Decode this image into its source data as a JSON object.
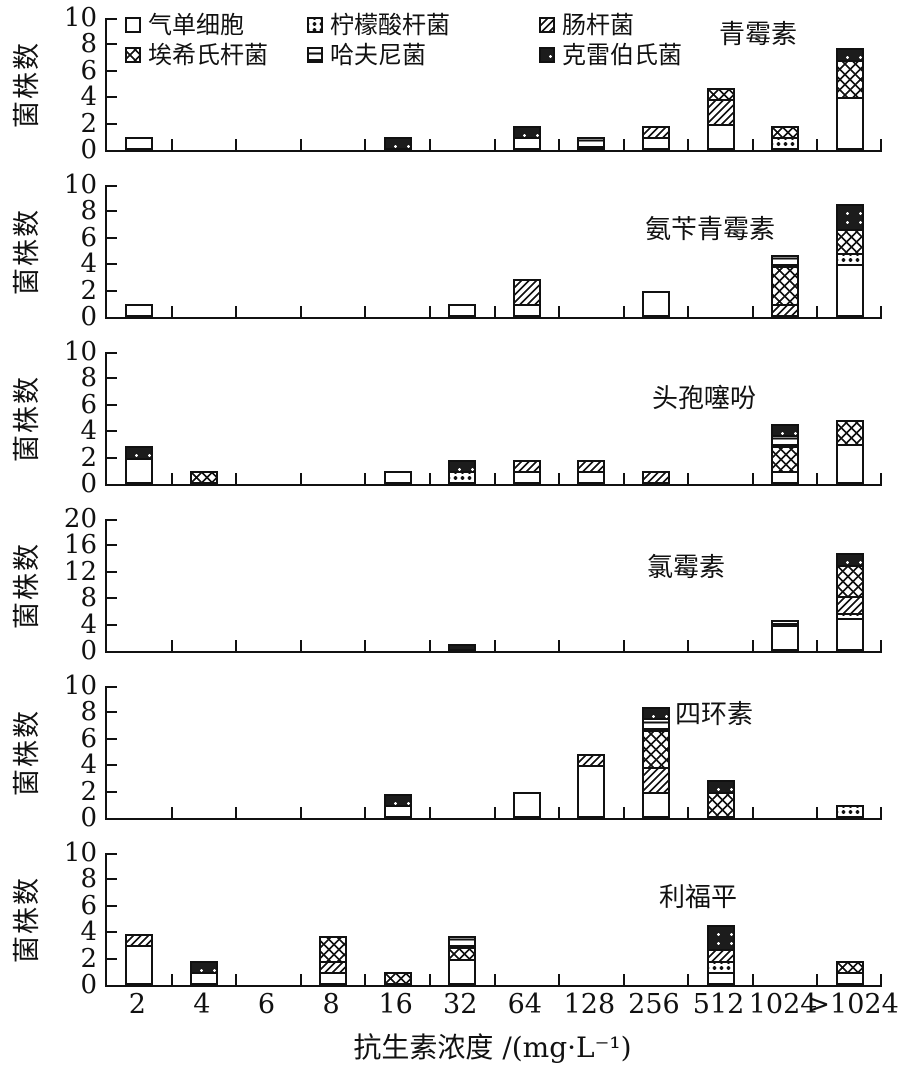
{
  "chart_data": {
    "type": "bar",
    "stacked": true,
    "ylabel": "菌株数",
    "xlabel": "抗生素浓度 /(mg·L⁻¹)",
    "categories": [
      "2",
      "4",
      "6",
      "8",
      "16",
      "32",
      "64",
      "128",
      "256",
      "512",
      "1024",
      ">1024"
    ],
    "legend_position": "inside-top-left-of-first-panel",
    "grid": false,
    "series_names": [
      "气单细胞",
      "柠檬酸杆菌",
      "肠杆菌",
      "埃希氏杆菌",
      "哈夫尼菌",
      "克雷伯氏菌"
    ],
    "legend": [
      {
        "label": "气单细胞",
        "pattern": "plain-white"
      },
      {
        "label": "柠檬酸杆菌",
        "pattern": "black-dots"
      },
      {
        "label": "肠杆菌",
        "pattern": "diagonal-hatch"
      },
      {
        "label": "埃希氏杆菌",
        "pattern": "cross-hatch"
      },
      {
        "label": "哈夫尼菌",
        "pattern": "horizontal-lines"
      },
      {
        "label": "克雷伯氏菌",
        "pattern": "solid-dark-white-dots"
      }
    ],
    "panels": [
      {
        "id": "penicillin",
        "title": "青霉素",
        "ylim": [
          0,
          10
        ],
        "yticks": [
          0,
          2,
          4,
          6,
          8,
          10
        ],
        "bars": {
          "2": [
            [
              0,
              1
            ]
          ],
          "16": [
            [
              5,
              1
            ]
          ],
          "64": [
            [
              0,
              1
            ],
            [
              5,
              1
            ]
          ],
          "128": [
            [
              4,
              1
            ]
          ],
          "256": [
            [
              0,
              1
            ],
            [
              2,
              1
            ]
          ],
          "512": [
            [
              0,
              2
            ],
            [
              2,
              2
            ],
            [
              3,
              1
            ]
          ],
          "1024": [
            [
              1,
              1
            ],
            [
              3,
              1
            ]
          ],
          ">1024": [
            [
              0,
              4
            ],
            [
              3,
              3
            ],
            [
              5,
              1
            ]
          ]
        }
      },
      {
        "id": "ampicillin",
        "title": "氨苄青霉素",
        "ylim": [
          0,
          10
        ],
        "yticks": [
          0,
          2,
          4,
          6,
          8,
          10
        ],
        "bars": {
          "2": [
            [
              0,
              1
            ]
          ],
          "32": [
            [
              0,
              1
            ]
          ],
          "64": [
            [
              0,
              1
            ],
            [
              2,
              2
            ]
          ],
          "256": [
            [
              0,
              2
            ]
          ],
          "1024": [
            [
              2,
              1
            ],
            [
              3,
              3
            ],
            [
              4,
              1
            ]
          ],
          ">1024": [
            [
              0,
              4
            ],
            [
              1,
              1
            ],
            [
              3,
              2
            ],
            [
              5,
              2
            ]
          ]
        }
      },
      {
        "id": "cephalothin",
        "title": "头孢噻吩",
        "ylim": [
          0,
          10
        ],
        "yticks": [
          0,
          2,
          4,
          6,
          8,
          10
        ],
        "bars": {
          "2": [
            [
              0,
              2
            ],
            [
              5,
              1
            ]
          ],
          "4": [
            [
              3,
              1
            ]
          ],
          "16": [
            [
              0,
              1
            ]
          ],
          "32": [
            [
              1,
              1
            ],
            [
              5,
              1
            ]
          ],
          "64": [
            [
              0,
              1
            ],
            [
              2,
              1
            ]
          ],
          "128": [
            [
              0,
              1
            ],
            [
              2,
              1
            ]
          ],
          "256": [
            [
              2,
              1
            ]
          ],
          "1024": [
            [
              0,
              1
            ],
            [
              3,
              2
            ],
            [
              4,
              1
            ],
            [
              5,
              1
            ]
          ],
          ">1024": [
            [
              0,
              3
            ],
            [
              3,
              2
            ]
          ]
        }
      },
      {
        "id": "chloramphenicol",
        "title": "氯霉素",
        "ylim": [
          0,
          20
        ],
        "yticks": [
          0,
          4,
          8,
          12,
          16,
          20
        ],
        "bars": {
          "32": [
            [
              5,
              1
            ]
          ],
          "1024": [
            [
              0,
              4
            ],
            [
              4,
              1
            ]
          ],
          ">1024": [
            [
              0,
              5
            ],
            [
              1,
              1
            ],
            [
              2,
              3
            ],
            [
              3,
              5
            ],
            [
              5,
              2
            ]
          ]
        }
      },
      {
        "id": "tetracycline",
        "title": "四环素",
        "ylim": [
          0,
          10
        ],
        "yticks": [
          0,
          2,
          4,
          6,
          8,
          10
        ],
        "bars": {
          "16": [
            [
              0,
              1
            ],
            [
              5,
              1
            ]
          ],
          "64": [
            [
              0,
              2
            ]
          ],
          "128": [
            [
              0,
              4
            ],
            [
              2,
              1
            ]
          ],
          "256": [
            [
              0,
              2
            ],
            [
              2,
              2
            ],
            [
              3,
              3
            ],
            [
              4,
              1
            ],
            [
              5,
              1
            ]
          ],
          "512": [
            [
              3,
              2
            ],
            [
              5,
              1
            ]
          ],
          ">1024": [
            [
              1,
              1
            ]
          ]
        }
      },
      {
        "id": "rifampin",
        "title": "利福平",
        "ylim": [
          0,
          10
        ],
        "yticks": [
          0,
          2,
          4,
          6,
          8,
          10
        ],
        "bars": {
          "2": [
            [
              0,
              3
            ],
            [
              2,
              1
            ]
          ],
          "4": [
            [
              0,
              1
            ],
            [
              5,
              1
            ]
          ],
          "8": [
            [
              0,
              1
            ],
            [
              2,
              1
            ],
            [
              3,
              2
            ]
          ],
          "16": [
            [
              3,
              1
            ]
          ],
          "32": [
            [
              0,
              2
            ],
            [
              3,
              1
            ],
            [
              4,
              1
            ]
          ],
          "512": [
            [
              0,
              1
            ],
            [
              1,
              1
            ],
            [
              2,
              1
            ],
            [
              5,
              2
            ]
          ],
          ">1024": [
            [
              0,
              1
            ],
            [
              3,
              1
            ]
          ]
        }
      }
    ]
  },
  "colors": {
    "ink": "#111111",
    "paper": "#ffffff"
  }
}
